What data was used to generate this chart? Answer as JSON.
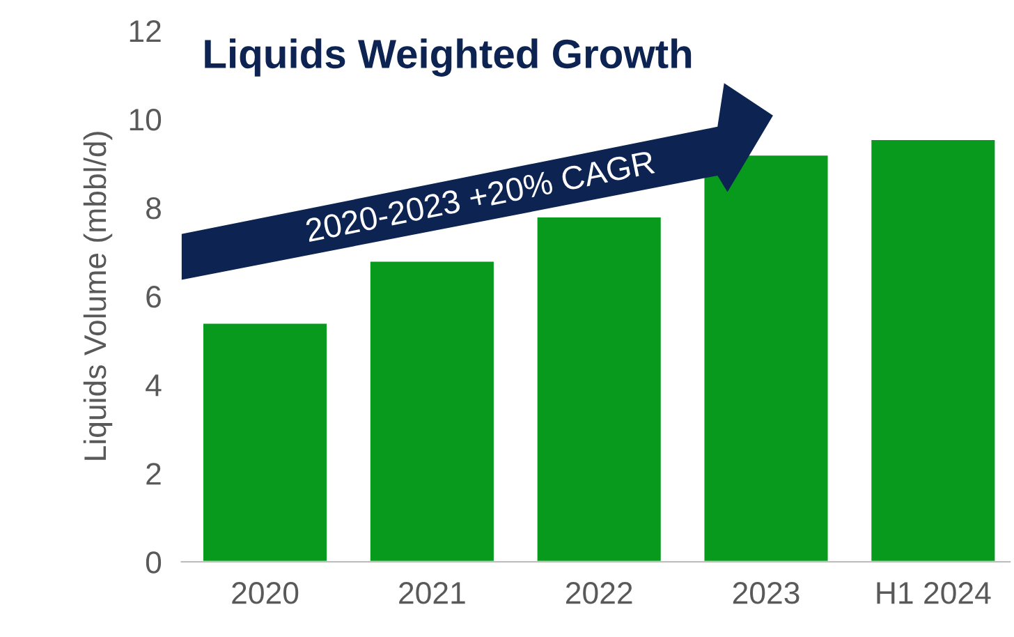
{
  "chart_data": {
    "type": "bar",
    "title": "Liquids Weighted Growth",
    "ylabel": "Liquids Volume (mbbl/d)",
    "categories": [
      "2020",
      "2021",
      "2022",
      "2023",
      "H1 2024"
    ],
    "values": [
      5.4,
      6.8,
      7.8,
      9.2,
      9.55
    ],
    "color": "#079a1c",
    "ylim": [
      0,
      12
    ],
    "yticks": [
      0,
      2,
      4,
      6,
      8,
      10,
      12
    ],
    "grid": false,
    "legend": false,
    "annotations": [
      "2020-2023 +20% CAGR"
    ]
  }
}
